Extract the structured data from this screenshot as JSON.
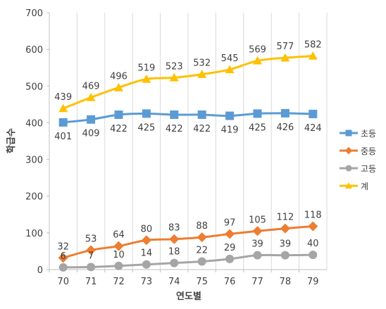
{
  "chart_data": {
    "type": "line",
    "categories": [
      "70",
      "71",
      "72",
      "73",
      "74",
      "75",
      "76",
      "77",
      "78",
      "79"
    ],
    "xlabel": "연도별",
    "ylabel": "학급수",
    "ylim": [
      0,
      700
    ],
    "yticks": [
      "0",
      "100",
      "200",
      "300",
      "400",
      "500",
      "600",
      "700"
    ],
    "grid": "vertical",
    "legend_position": "right",
    "series": [
      {
        "name": "초등",
        "color": "#5B9BD5",
        "marker": "square",
        "label_pos": "below",
        "values": [
          401,
          409,
          422,
          425,
          422,
          422,
          419,
          425,
          426,
          424
        ]
      },
      {
        "name": "중등",
        "color": "#ED7D31",
        "marker": "diamond",
        "label_pos": "above",
        "values": [
          32,
          53,
          64,
          80,
          83,
          88,
          97,
          105,
          112,
          118
        ]
      },
      {
        "name": "고등",
        "color": "#A5A5A5",
        "marker": "circle",
        "label_pos": "above",
        "values": [
          6,
          7,
          10,
          14,
          18,
          22,
          29,
          39,
          39,
          40
        ]
      },
      {
        "name": "계",
        "color": "#FFC000",
        "marker": "triangle",
        "label_pos": "above",
        "values": [
          439,
          469,
          496,
          519,
          523,
          532,
          545,
          569,
          577,
          582
        ]
      }
    ]
  }
}
